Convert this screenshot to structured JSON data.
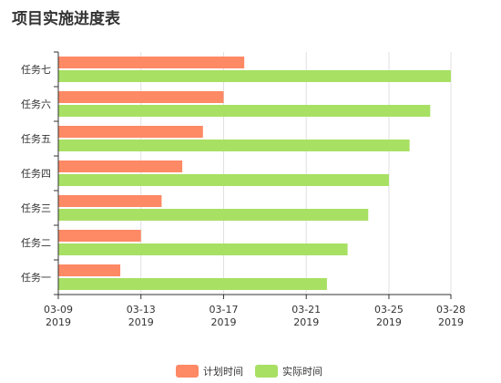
{
  "chart_data": {
    "type": "bar",
    "orientation": "horizontal",
    "title": "项目实施进度表",
    "categories": [
      "任务一",
      "任务二",
      "任务三",
      "任务四",
      "任务五",
      "任务六",
      "任务七"
    ],
    "series": [
      {
        "name": "计划时间",
        "color": "#fd8965",
        "values": [
          "2019-03-12",
          "2019-03-13",
          "2019-03-14",
          "2019-03-15",
          "2019-03-16",
          "2019-03-17",
          "2019-03-18"
        ]
      },
      {
        "name": "实际时间",
        "color": "#a8e063",
        "values": [
          "2019-03-22",
          "2019-03-23",
          "2019-03-24",
          "2019-03-25",
          "2019-03-26",
          "2019-03-27",
          "2019-03-28"
        ]
      }
    ],
    "x_axis": {
      "type": "time",
      "range": [
        "2019-03-09",
        "2019-03-28"
      ],
      "ticks": [
        {
          "date": "2019-03-09",
          "label": "03-09",
          "year": "2019"
        },
        {
          "date": "2019-03-13",
          "label": "03-13",
          "year": "2019"
        },
        {
          "date": "2019-03-17",
          "label": "03-17",
          "year": "2019"
        },
        {
          "date": "2019-03-21",
          "label": "03-21",
          "year": "2019"
        },
        {
          "date": "2019-03-25",
          "label": "03-25",
          "year": "2019"
        },
        {
          "date": "2019-03-28",
          "label": "03-28",
          "year": "2019"
        }
      ]
    },
    "grid": true,
    "legend": "bottom-center"
  }
}
